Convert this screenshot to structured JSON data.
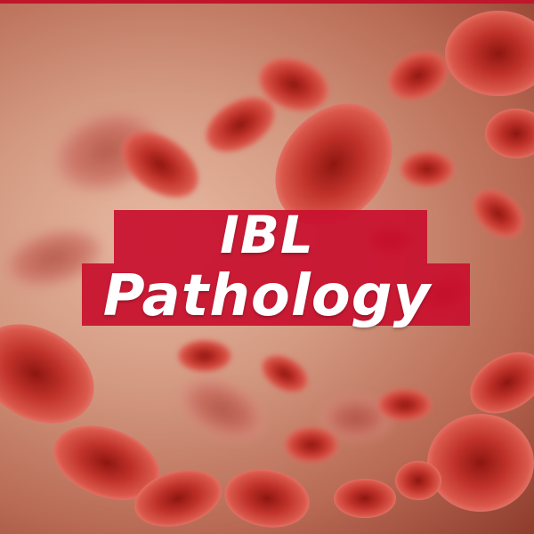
{
  "title": {
    "line1": "IBL",
    "line2": "Pathology"
  },
  "colors": {
    "banner": "#c8102e",
    "text": "#ffffff",
    "accent_bar": "#c0162b",
    "cell": "#b3261e"
  }
}
